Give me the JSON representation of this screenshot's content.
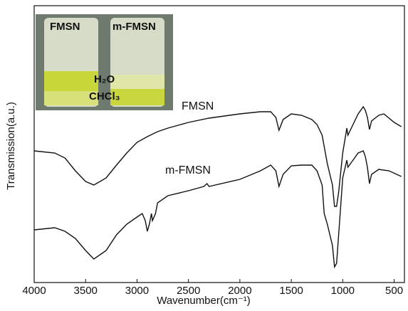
{
  "chart_data": {
    "type": "line",
    "x_label": "Wavenumber(cm⁻¹)",
    "y_label": "Transmission(a.u.)",
    "xlim": [
      4000,
      400
    ],
    "ylim": [
      0,
      389
    ],
    "xticks": [
      4000,
      3500,
      3000,
      2500,
      2000,
      1500,
      1000,
      500
    ],
    "series": [
      {
        "name": "FMSN",
        "color": "#111111",
        "x": [
          4000,
          3800,
          3700,
          3600,
          3500,
          3420,
          3300,
          3200,
          3100,
          3000,
          2900,
          2800,
          2700,
          2500,
          2300,
          2000,
          1800,
          1700,
          1650,
          1620,
          1580,
          1500,
          1400,
          1300,
          1250,
          1200,
          1150,
          1100,
          1080,
          1060,
          1040,
          1000,
          960,
          950,
          900,
          850,
          800,
          780,
          760,
          740,
          720,
          650,
          600,
          500,
          430
        ],
        "values": [
          185,
          182,
          175,
          157,
          142,
          137,
          147,
          165,
          182,
          197,
          205,
          212,
          217,
          225,
          231,
          237,
          240,
          240,
          232,
          214,
          229,
          237,
          235,
          229,
          222,
          207,
          167,
          137,
          107,
          107,
          127,
          182,
          217,
          207,
          222,
          237,
          247,
          242,
          232,
          215,
          227,
          235,
          237,
          225,
          219
        ]
      },
      {
        "name": "m-FMSN",
        "color": "#111111",
        "x": [
          4000,
          3800,
          3700,
          3600,
          3500,
          3420,
          3300,
          3200,
          3100,
          3000,
          2950,
          2920,
          2900,
          2880,
          2860,
          2850,
          2820,
          2800,
          2700,
          2500,
          2350,
          2320,
          2300,
          2000,
          1800,
          1700,
          1650,
          1620,
          1580,
          1500,
          1400,
          1300,
          1250,
          1200,
          1180,
          1150,
          1100,
          1080,
          1060,
          1040,
          1000,
          960,
          950,
          900,
          850,
          800,
          780,
          760,
          740,
          720,
          650,
          550,
          430
        ],
        "values": [
          74,
          77,
          72,
          62,
          45,
          33,
          45,
          67,
          82,
          92,
          97,
          87,
          72,
          82,
          97,
          87,
          97,
          112,
          122,
          129,
          135,
          139,
          135,
          145,
          157,
          165,
          157,
          135,
          152,
          164,
          165,
          165,
          157,
          137,
          97,
          82,
          52,
          22,
          27,
          67,
          147,
          172,
          162,
          172,
          182,
          185,
          177,
          162,
          139,
          152,
          159,
          157,
          149
        ]
      }
    ],
    "inset_labels": [
      "FMSN",
      "m-FMSN",
      "H₂O",
      "CHCl₃"
    ]
  }
}
